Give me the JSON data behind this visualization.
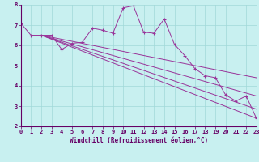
{
  "xlabel": "Windchill (Refroidissement éolien,°C)",
  "xlim": [
    0,
    23
  ],
  "ylim": [
    2,
    8
  ],
  "yticks": [
    2,
    3,
    4,
    5,
    6,
    7,
    8
  ],
  "xticks": [
    0,
    1,
    2,
    3,
    4,
    5,
    6,
    7,
    8,
    9,
    10,
    11,
    12,
    13,
    14,
    15,
    16,
    17,
    18,
    19,
    20,
    21,
    22,
    23
  ],
  "bg_color": "#c8f0f0",
  "grid_color": "#a0d8d8",
  "line_color": "#993399",
  "line1_x": [
    0,
    1,
    2,
    3,
    4,
    5,
    6,
    7,
    8,
    9,
    10,
    11,
    12,
    13,
    14,
    15,
    16,
    17,
    18,
    19,
    20,
    21,
    22,
    23
  ],
  "line1_y": [
    7.1,
    6.5,
    6.5,
    6.5,
    5.8,
    6.1,
    6.15,
    6.85,
    6.75,
    6.6,
    7.85,
    7.95,
    6.65,
    6.6,
    7.3,
    6.05,
    5.5,
    4.85,
    4.5,
    4.4,
    3.55,
    3.25,
    3.5,
    2.4
  ],
  "line2_x": [
    2,
    23
  ],
  "line2_y": [
    6.5,
    2.4
  ],
  "line3_x": [
    2,
    23
  ],
  "line3_y": [
    6.5,
    2.85
  ],
  "line4_x": [
    2,
    23
  ],
  "line4_y": [
    6.5,
    3.5
  ],
  "line5_x": [
    2,
    23
  ],
  "line5_y": [
    6.5,
    4.4
  ]
}
